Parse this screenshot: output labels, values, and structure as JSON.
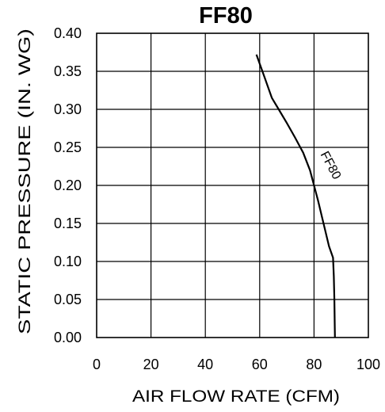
{
  "chart_data": {
    "type": "line",
    "title": "FF80",
    "xlabel": "AIR FLOW RATE (CFM)",
    "ylabel": "STATIC PRESSURE (IN. WG)",
    "xlim": [
      0,
      100
    ],
    "ylim": [
      0,
      0.4
    ],
    "grid": true,
    "x_ticks": [
      "0",
      "20",
      "40",
      "60",
      "80",
      "100"
    ],
    "y_ticks": [
      "0.00",
      "0.05",
      "0.10",
      "0.15",
      "0.20",
      "0.25",
      "0.30",
      "0.35",
      "0.40"
    ],
    "series": [
      {
        "name": "FF80",
        "x": [
          58.8,
          60.0,
          62.0,
          64.5,
          67.0,
          70.0,
          73.0,
          76.0,
          78.5,
          80.0,
          81.5,
          83.5,
          85.5,
          87.0,
          87.3,
          87.5,
          87.6,
          87.7
        ],
        "y": [
          0.372,
          0.36,
          0.34,
          0.315,
          0.3,
          0.282,
          0.263,
          0.243,
          0.22,
          0.2,
          0.18,
          0.15,
          0.12,
          0.105,
          0.08,
          0.05,
          0.02,
          0.0
        ]
      }
    ],
    "annotations": [
      {
        "text": "FF80",
        "series": "FF80"
      }
    ]
  }
}
